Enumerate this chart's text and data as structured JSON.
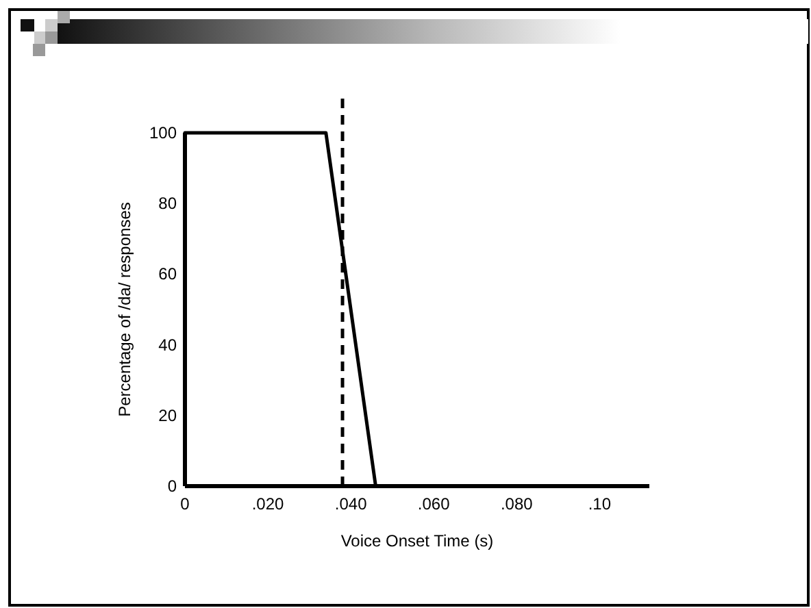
{
  "chart_data": {
    "type": "line",
    "xlabel": "Voice Onset Time (s)",
    "ylabel": "Percentage of /da/ responses",
    "x": [
      0,
      0.034,
      0.046,
      0.109
    ],
    "series": [
      {
        "color": "#000000",
        "values": [
          100,
          100,
          0,
          0
        ]
      }
    ],
    "xlim": [
      0,
      0.112
    ],
    "ylim": [
      0,
      100
    ],
    "xticks": [
      0,
      {
        "value": 0.02,
        "label": ".020"
      },
      {
        "value": 0.04,
        "label": ".040"
      },
      {
        "value": 0.06,
        "label": ".060"
      },
      {
        "value": 0.08,
        "label": ".080"
      },
      {
        "value": 0.1,
        "label": ".10"
      }
    ],
    "yticks": [
      0,
      20,
      40,
      60,
      80,
      100
    ],
    "ref_lines": [
      {
        "axis": "x",
        "value": 0.038,
        "line_style": "dashed",
        "color": "#000000"
      }
    ],
    "grid": false,
    "marker": "none",
    "line_style": "solid"
  }
}
